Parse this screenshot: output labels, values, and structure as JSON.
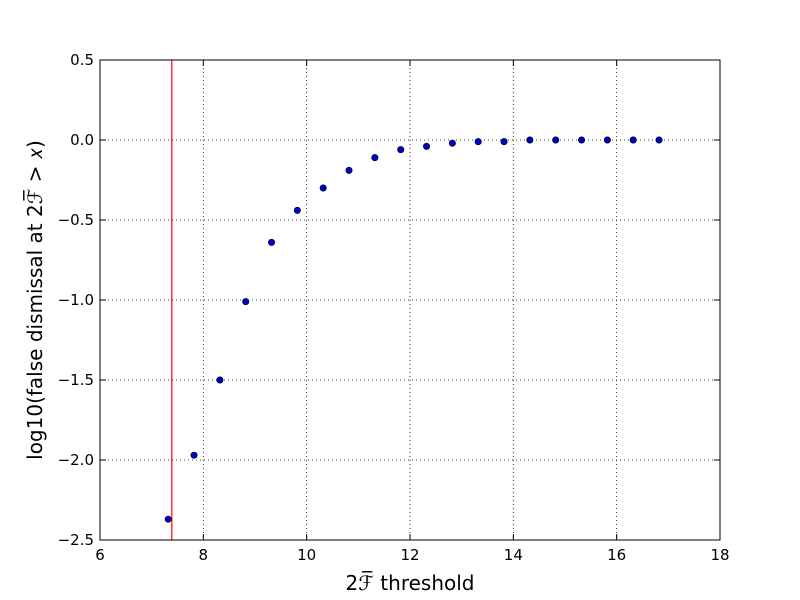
{
  "chart_data": {
    "type": "scatter",
    "xlabel": "2ℱ̅ threshold",
    "ylabel": "log10(false dismissal at 2ℱ̅ > 𝑥)",
    "series": [
      {
        "color": "#0000cc",
        "x": [
          7.32,
          7.82,
          8.32,
          8.82,
          9.32,
          9.82,
          10.32,
          10.82,
          11.32,
          11.82,
          12.32,
          12.82,
          13.32,
          13.82,
          14.32,
          14.82,
          15.32,
          15.82,
          16.32,
          16.82
        ],
        "values": [
          -2.37,
          -1.97,
          -1.5,
          -1.01,
          -0.64,
          -0.44,
          -0.3,
          -0.19,
          -0.11,
          -0.06,
          -0.04,
          -0.02,
          -0.01,
          -0.01,
          0,
          0,
          0,
          0,
          0,
          0
        ],
        "errors": [
          0.01,
          0.01,
          0.01,
          0.01,
          0.02,
          0.02,
          0.02,
          0.02,
          0.02,
          0.01,
          0.01,
          0.01,
          0.01,
          0.01,
          0.01,
          0.01,
          0.01,
          0.01,
          0.01,
          0.01
        ]
      }
    ],
    "vline": {
      "x": 7.39,
      "color": "#ff0000"
    },
    "xlim": [
      6,
      18
    ],
    "xticks": [
      6,
      8,
      10,
      12,
      14,
      16,
      18
    ],
    "ylim": [
      -2.5,
      0.5
    ],
    "yticks": [
      {
        "value": -2.5,
        "label": "−2.5"
      },
      {
        "value": -2,
        "label": "−2.0"
      },
      {
        "value": -1.5,
        "label": "−1.5"
      },
      {
        "value": -1,
        "label": "−1.0"
      },
      {
        "value": -0.5,
        "label": "−0.5"
      },
      {
        "value": 0,
        "label": "0.0"
      },
      0.5
    ],
    "grid": true
  }
}
